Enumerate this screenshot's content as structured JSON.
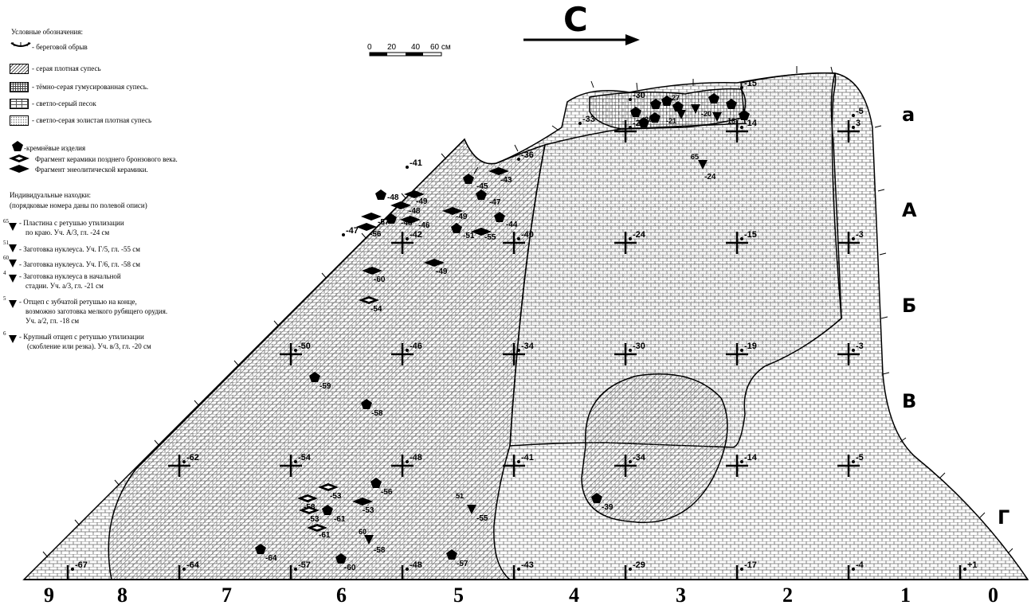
{
  "legend": {
    "title": "Условные обозначения:",
    "cliff_label": "- береговой обрыв",
    "soils": [
      {
        "label": "- серая плотная супесь",
        "pattern": "diag"
      },
      {
        "label": "- тёмно-серая гумусированная супесь.",
        "pattern": "grid"
      },
      {
        "label": "- светло-серый песок",
        "pattern": "brick"
      },
      {
        "label": "- светло-серая золистая плотная супесь",
        "pattern": "dots"
      }
    ],
    "symbols": [
      {
        "label": "-кремнёвые изделия",
        "icon": "pentagon-icon"
      },
      {
        "label": "Фрагмент керамики позднего бронзового века.",
        "icon": "diamond-open-icon"
      },
      {
        "label": "Фрагмент энеолитической керамики.",
        "icon": "diamond-solid-icon"
      }
    ],
    "finds_title": "Индивидуальные находки:",
    "finds_subtitle": "(порядковые номера даны по полевой описи)",
    "finds": [
      {
        "num": "65",
        "lines": [
          "- Пластина с ретушью утилизации",
          "по краю. Уч. А/3, гл. -24 см"
        ]
      },
      {
        "num": "51",
        "lines": [
          "- Заготовка нуклеуса. Уч. Г/5, гл. -55 см"
        ]
      },
      {
        "num": "60",
        "lines": [
          "- Заготовка нуклеуса. Уч. Г/6, гл. -58 см"
        ]
      },
      {
        "num": "4",
        "lines": [
          "- Заготовка нуклеуса в начальной",
          "стадии. Уч. а/3, гл. -21 см"
        ]
      },
      {
        "num": "5",
        "lines": [
          "- Отщеп с зубчатой ретушью на конце,",
          "возможно заготовка мелкого рубящего орудия.",
          "Уч. а/2, гл. -18 см"
        ]
      },
      {
        "num": "6",
        "lines": [
          "- Крупный отщеп с ретушью утилизации",
          "(скобление или резка). Уч. в/3, гл. -20 см"
        ]
      }
    ]
  },
  "scale": {
    "ticks": [
      "0",
      "20",
      "40",
      "60 см"
    ]
  },
  "north_letter": "С",
  "colors": {
    "ink": "#000000",
    "paper": "#ffffff"
  },
  "columns": [
    "9",
    "8",
    "7",
    "6",
    "5",
    "4",
    "3",
    "2",
    "1",
    "0"
  ],
  "rows": [
    "а",
    "А",
    "Б",
    "В",
    "Г"
  ],
  "grid_depths": [
    {
      "label": "-33"
    },
    {
      "label": "-30"
    },
    {
      "label": "-29"
    },
    {
      "label": "-15"
    },
    {
      "label": "-14"
    },
    {
      "label": "-5"
    },
    {
      "label": "3"
    },
    {
      "label": "-41"
    },
    {
      "label": "-36"
    },
    {
      "label": "-47"
    },
    {
      "label": "-42"
    },
    {
      "label": "-40"
    },
    {
      "label": "-24"
    },
    {
      "label": "-15"
    },
    {
      "label": "-3"
    },
    {
      "label": "-50"
    },
    {
      "label": "-46"
    },
    {
      "label": "-34"
    },
    {
      "label": "-30"
    },
    {
      "label": "-19"
    },
    {
      "label": "-3"
    },
    {
      "label": "-62"
    },
    {
      "label": "-54"
    },
    {
      "label": "-48"
    },
    {
      "label": "-41"
    },
    {
      "label": "-34"
    },
    {
      "label": "-14"
    },
    {
      "label": "-5"
    },
    {
      "label": "-67"
    },
    {
      "label": "-64"
    },
    {
      "label": "-57"
    },
    {
      "label": "-48"
    },
    {
      "label": "-43"
    },
    {
      "label": "-29"
    },
    {
      "label": "-17"
    },
    {
      "label": "-4"
    },
    {
      "label": "+1"
    }
  ],
  "finds_labels": [
    {
      "label": "-45"
    },
    {
      "label": "-47"
    },
    {
      "label": "-44"
    },
    {
      "label": "-51"
    },
    {
      "label": "-48"
    },
    {
      "label": "-46"
    },
    {
      "label": "-43"
    },
    {
      "label": "-49"
    },
    {
      "label": "-49"
    },
    {
      "label": "-55"
    },
    {
      "label": "-57"
    },
    {
      "label": "-56"
    },
    {
      "label": "-48"
    },
    {
      "label": "-46"
    },
    {
      "label": "-49"
    },
    {
      "label": "-60"
    },
    {
      "label": "-54"
    },
    {
      "label": "-59"
    },
    {
      "label": "-58"
    },
    {
      "label": "-56"
    },
    {
      "label": "-53"
    },
    {
      "label": "-53"
    },
    {
      "label": "-58"
    },
    {
      "label": "-53"
    },
    {
      "label": "-61"
    },
    {
      "label": "-61"
    },
    {
      "label": "-64"
    },
    {
      "label": "-60"
    },
    {
      "label": "-57"
    },
    {
      "label": "-39"
    },
    {
      "label": "-55"
    },
    {
      "label": "51"
    },
    {
      "label": "-58"
    },
    {
      "label": "60"
    },
    {
      "label": "-24"
    },
    {
      "label": "65"
    },
    {
      "label": "-27"
    },
    {
      "label": "-21"
    },
    {
      "label": "-20"
    },
    {
      "label": "-18"
    },
    {
      "label": "-26"
    }
  ]
}
